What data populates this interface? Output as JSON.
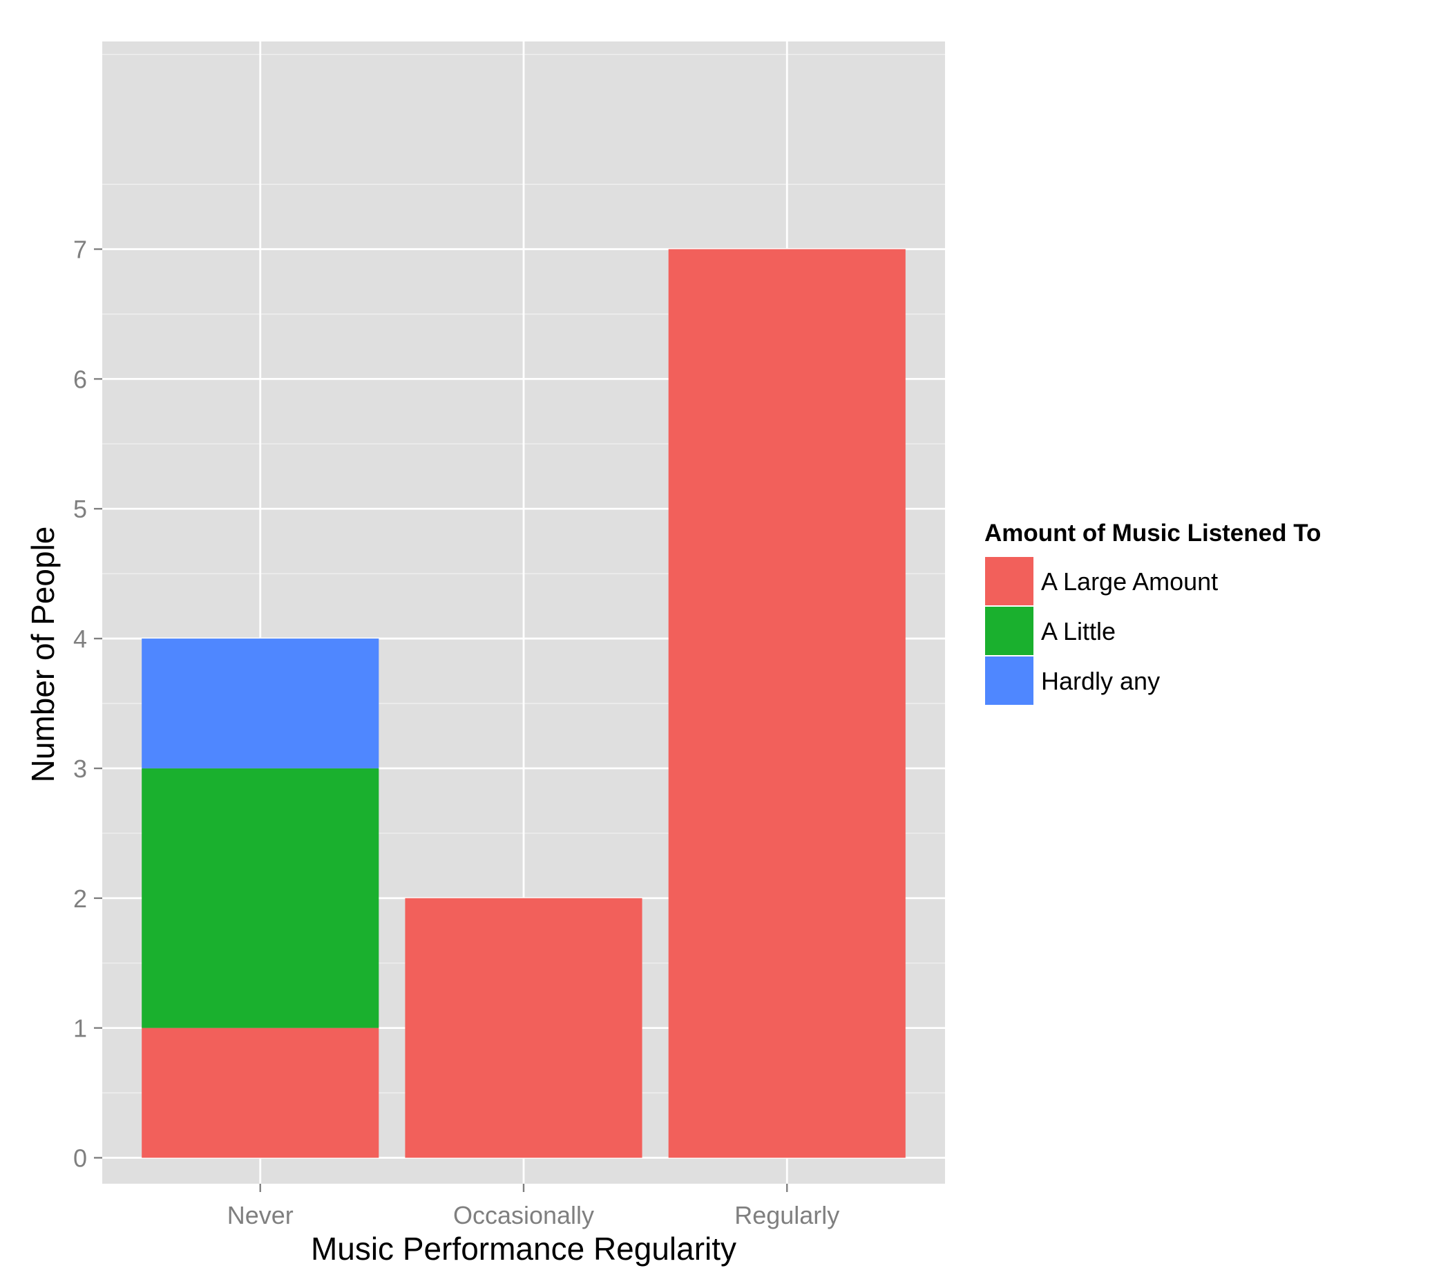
{
  "chart_data": {
    "type": "bar",
    "stacked": true,
    "xlabel": "Music Performance Regularity",
    "ylabel": "Number of People",
    "categories": [
      "Never",
      "Occasionally",
      "Regularly"
    ],
    "series": [
      {
        "name": "A Large Amount",
        "values": [
          1,
          2,
          7
        ],
        "color": "#F2605B"
      },
      {
        "name": "A Little",
        "values": [
          2,
          0,
          0
        ],
        "color": "#1AB02E"
      },
      {
        "name": "Hardly any",
        "values": [
          1,
          0,
          0
        ],
        "color": "#4F87FF"
      }
    ],
    "yticks": [
      0,
      1,
      2,
      3,
      4,
      5,
      6,
      7
    ],
    "ylim": [
      -0.2,
      8.6
    ],
    "grid": true,
    "panel_background": "#DFDFDF",
    "grid_color": "#FFFFFF",
    "legend": {
      "title": "Amount of Music Listened To",
      "position": "right"
    }
  }
}
